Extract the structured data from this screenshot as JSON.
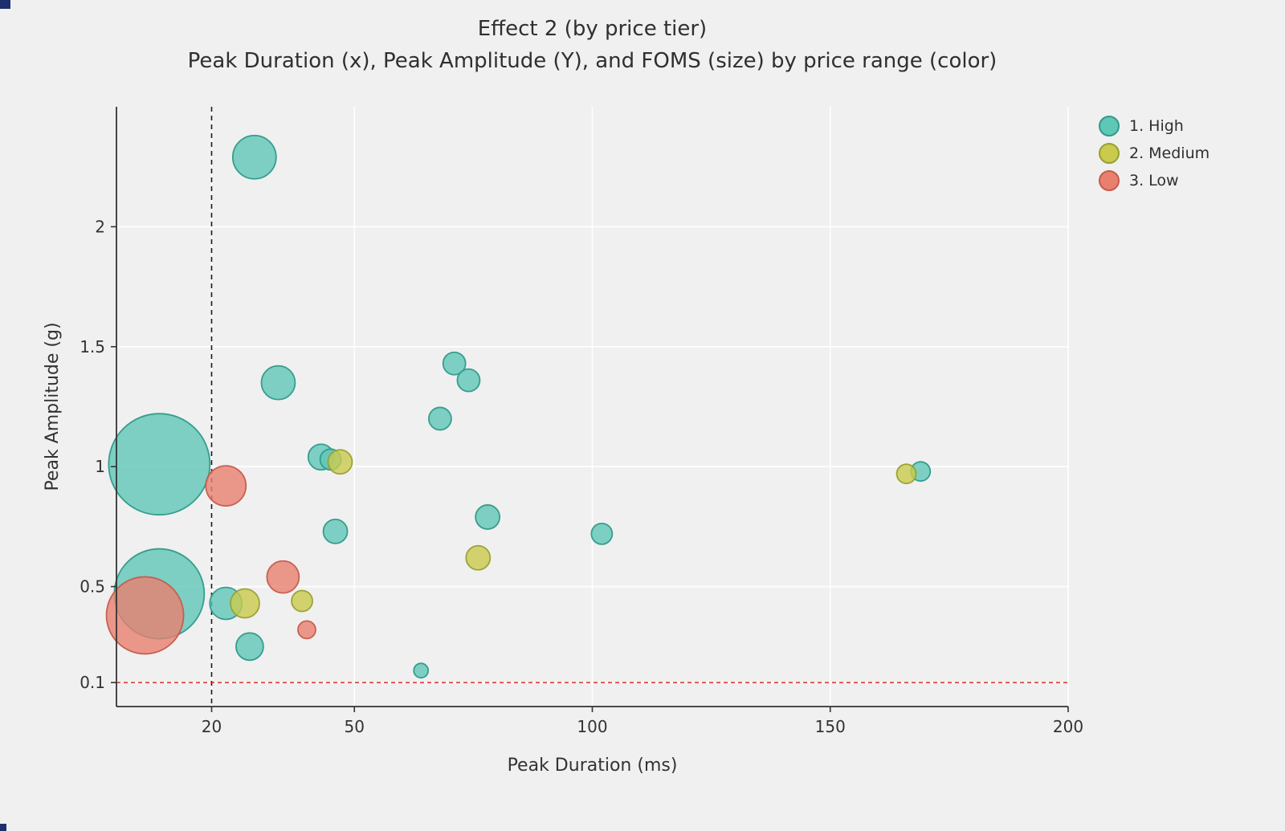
{
  "colors": {
    "background": "#f0f0f0",
    "panel": "#f0f0f0",
    "grid": "#ffffff",
    "axis": "#333333",
    "tick_label": "#333333",
    "title": "#2f2f2f",
    "vline": "#1a1a1a",
    "hline": "#e02b2b",
    "corner_artifact": "#1e2f6e"
  },
  "chart_data": {
    "type": "scatter",
    "title": "Effect 2 (by price tier)",
    "subtitle": "Peak Duration (x), Peak Amplitude (Y), and FOMS (size) by price range (color)",
    "xlabel": "Peak Duration (ms)",
    "ylabel": "Peak Amplitude (g)",
    "xlim": [
      0,
      200
    ],
    "ylim": [
      0,
      2.5
    ],
    "xticks": [
      20,
      50,
      100,
      150,
      200
    ],
    "yticks": [
      0.1,
      0.5,
      1,
      1.5,
      2
    ],
    "grid": true,
    "legend_position": "top-right",
    "reference_lines": {
      "vline_x": 20,
      "hline_y": 0.1
    },
    "size_note": "bubble radius in px encodes FOMS (size); exact FOMS values not labeled in figure",
    "series": [
      {
        "name": "1. High",
        "color": "#5fc7b6",
        "edge": "#2f9a8a",
        "points": [
          {
            "x": 9,
            "y": 1.01,
            "r": 63
          },
          {
            "x": 9,
            "y": 0.47,
            "r": 56
          },
          {
            "x": 29,
            "y": 2.29,
            "r": 27
          },
          {
            "x": 34,
            "y": 1.35,
            "r": 21
          },
          {
            "x": 43,
            "y": 1.04,
            "r": 16
          },
          {
            "x": 45,
            "y": 1.03,
            "r": 13
          },
          {
            "x": 71,
            "y": 1.43,
            "r": 14
          },
          {
            "x": 74,
            "y": 1.36,
            "r": 14
          },
          {
            "x": 68,
            "y": 1.2,
            "r": 14
          },
          {
            "x": 78,
            "y": 0.79,
            "r": 15
          },
          {
            "x": 46,
            "y": 0.73,
            "r": 15
          },
          {
            "x": 102,
            "y": 0.72,
            "r": 13
          },
          {
            "x": 169,
            "y": 0.98,
            "r": 12
          },
          {
            "x": 23,
            "y": 0.43,
            "r": 20
          },
          {
            "x": 28,
            "y": 0.25,
            "r": 17
          },
          {
            "x": 64,
            "y": 0.15,
            "r": 9
          }
        ]
      },
      {
        "name": "2. Medium",
        "color": "#c9ca4e",
        "edge": "#98a02f",
        "points": [
          {
            "x": 47,
            "y": 1.02,
            "r": 15
          },
          {
            "x": 166,
            "y": 0.97,
            "r": 12
          },
          {
            "x": 76,
            "y": 0.62,
            "r": 15
          },
          {
            "x": 27,
            "y": 0.43,
            "r": 18
          },
          {
            "x": 39,
            "y": 0.44,
            "r": 13
          }
        ]
      },
      {
        "name": "3. Low",
        "color": "#e97f6f",
        "edge": "#c65b4c",
        "points": [
          {
            "x": 23,
            "y": 0.92,
            "r": 25
          },
          {
            "x": 35,
            "y": 0.54,
            "r": 20
          },
          {
            "x": 6,
            "y": 0.38,
            "r": 48
          },
          {
            "x": 40,
            "y": 0.32,
            "r": 11
          }
        ]
      }
    ]
  }
}
